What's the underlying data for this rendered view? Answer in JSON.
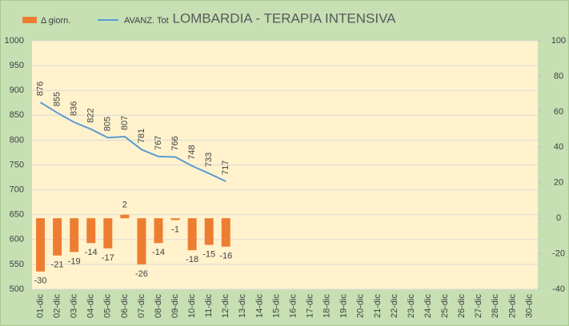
{
  "chart_data": {
    "type": "combo",
    "title": "LOMBARDIA - TERAPIA INTENSIVA",
    "categories": [
      "01-dic",
      "02-dic",
      "03-dic",
      "04-dic",
      "05-dic",
      "06-dic",
      "07-dic",
      "08-dic",
      "09-dic",
      "10-dic",
      "11-dic",
      "12-dic",
      "13-dic",
      "14-dic",
      "15-dic",
      "16-dic",
      "17-dic",
      "18-dic",
      "19-dic",
      "20-dic",
      "21-dic",
      "22-dic",
      "23-dic",
      "24-dic",
      "25-dic",
      "26-dic",
      "27-dic",
      "28-dic",
      "29-dic",
      "30-dic"
    ],
    "series": [
      {
        "name": "Δ giorn.",
        "type": "bar",
        "axis": "y2",
        "color": "#ed7d31",
        "values": [
          -30,
          -21,
          -19,
          -14,
          -17,
          2,
          -26,
          -14,
          -1,
          -18,
          -15,
          -16,
          null,
          null,
          null,
          null,
          null,
          null,
          null,
          null,
          null,
          null,
          null,
          null,
          null,
          null,
          null,
          null,
          null,
          null
        ]
      },
      {
        "name": "AVANZ. Tot",
        "type": "line",
        "axis": "y",
        "color": "#5b9bd5",
        "values": [
          876,
          855,
          836,
          822,
          805,
          807,
          781,
          767,
          766,
          748,
          733,
          717,
          null,
          null,
          null,
          null,
          null,
          null,
          null,
          null,
          null,
          null,
          null,
          null,
          null,
          null,
          null,
          null,
          null,
          null
        ]
      }
    ],
    "ylim": [
      500,
      1000
    ],
    "yticks": [
      500,
      550,
      600,
      650,
      700,
      750,
      800,
      850,
      900,
      950,
      1000
    ],
    "y2lim": [
      -40,
      100
    ],
    "y2ticks": [
      -40,
      -20,
      0,
      20,
      40,
      60,
      80,
      100
    ],
    "grid": true
  }
}
